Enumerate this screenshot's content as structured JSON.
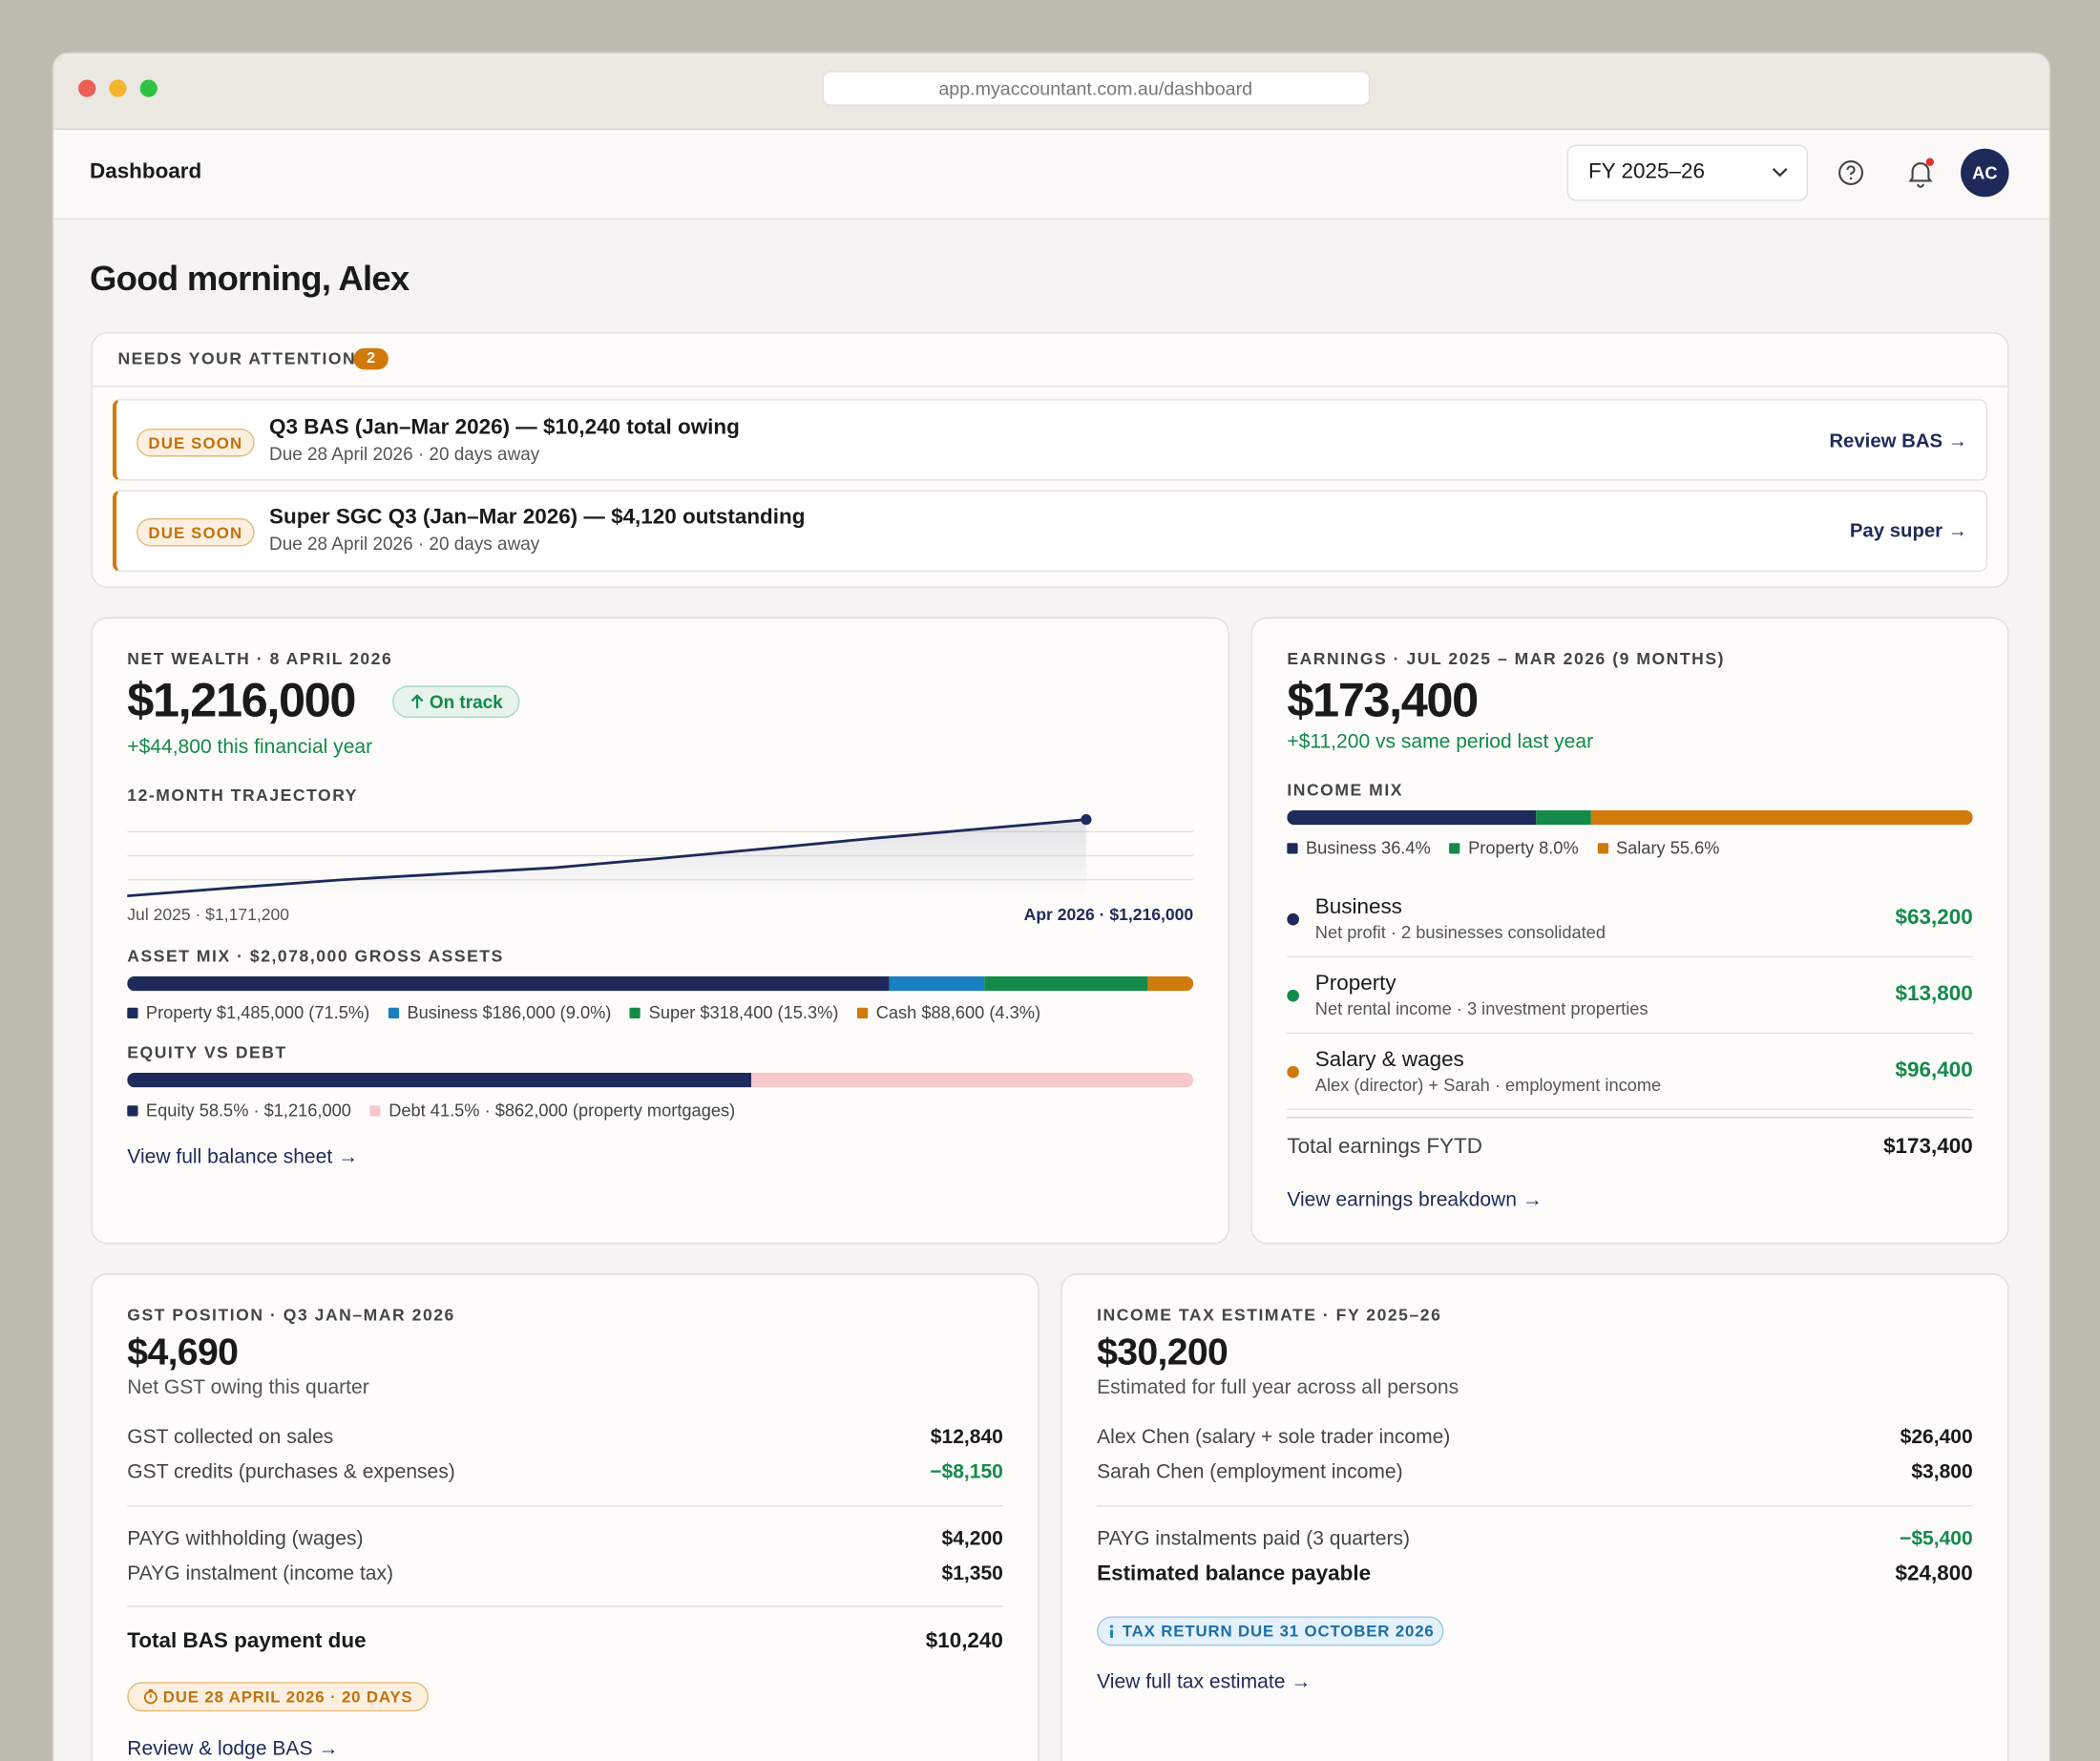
{
  "browser": {
    "url": "app.myaccountant.com.au/dashboard"
  },
  "header": {
    "title": "Dashboard",
    "fy": "FY 2025–26",
    "avatar": "AC"
  },
  "greeting": "Good morning, Alex",
  "attention": {
    "title": "NEEDS YOUR ATTENTION",
    "count": 2,
    "items": [
      {
        "badge": "DUE SOON",
        "title": "Q3 BAS (Jan–Mar 2026) — $10,240 total owing",
        "sub": "Due 28 April 2026 · 20 days away",
        "action": "Review BAS →"
      },
      {
        "badge": "DUE SOON",
        "title": "Super SGC Q3 (Jan–Mar 2026) — $4,120 outstanding",
        "sub": "Due 28 April 2026 · 20 days away",
        "action": "Pay super →"
      }
    ]
  },
  "net_wealth": {
    "label": "NET WEALTH · 8 APRIL 2026",
    "value": "$1,216,000",
    "status": "On track",
    "change": "+$44,800 this financial year",
    "trajectory": {
      "title": "12-MONTH TRAJECTORY",
      "values": [
        1171200,
        1176000,
        1180600,
        1184200,
        1187700,
        1193200,
        1199000,
        1205000,
        1210500,
        1216000
      ],
      "color": "#1e2a5a",
      "start_label": "Jul 2025 · $1,171,200",
      "end_label": "Apr 2026 · $1,216,000"
    },
    "asset_mix": {
      "title": "ASSET MIX · $2,078,000 GROSS ASSETS",
      "segments": [
        {
          "label": "Property $1,485,000 (71.5%)",
          "share": 71.5,
          "color": "#1e2a5a"
        },
        {
          "label": "Business $186,000 (9.0%)",
          "share": 9.0,
          "color": "#1a7fc0"
        },
        {
          "label": "Super $318,400 (15.3%)",
          "share": 15.3,
          "color": "#138a4a"
        },
        {
          "label": "Cash $88,600 (4.3%)",
          "share": 4.3,
          "color": "#d07a0c"
        }
      ]
    },
    "equity_debt": {
      "title": "EQUITY VS DEBT",
      "segments": [
        {
          "label": "Equity 58.5% · $1,216,000",
          "share": 58.5,
          "color": "#1e2a5a"
        },
        {
          "label": "Debt 41.5% · $862,000 (property mortgages)",
          "share": 41.5,
          "color": "#f7c9cc"
        }
      ]
    },
    "link": "View full balance sheet →"
  },
  "earnings": {
    "label": "EARNINGS · JUL 2025 – MAR 2026 (9 MONTHS)",
    "value": "$173,400",
    "change": "+$11,200 vs same period last year",
    "income_mix": {
      "title": "INCOME MIX",
      "segments": [
        {
          "label": "Business 36.4%",
          "share": 36.4,
          "color": "#1e2a5a"
        },
        {
          "label": "Property 8.0%",
          "share": 8.0,
          "color": "#138a4a"
        },
        {
          "label": "Salary 55.6%",
          "share": 55.6,
          "color": "#d07a0c"
        }
      ]
    },
    "rows": [
      {
        "name": "Business",
        "sub": "Net profit · 2 businesses consolidated",
        "amount": "$63,200",
        "color": "#1e2a5a"
      },
      {
        "name": "Property",
        "sub": "Net rental income · 3 investment properties",
        "amount": "$13,800",
        "color": "#138a4a"
      },
      {
        "name": "Salary & wages",
        "sub": "Alex (director) + Sarah · employment income",
        "amount": "$96,400",
        "color": "#d07a0c"
      }
    ],
    "total": {
      "label": "Total earnings FYTD",
      "amount": "$173,400"
    },
    "link": "View earnings breakdown →"
  },
  "gst": {
    "label": "GST POSITION · Q3 JAN–MAR 2026",
    "value": "$4,690",
    "sub": "Net GST owing this quarter",
    "rows": [
      {
        "label": "GST collected on sales",
        "amount": "$12,840"
      },
      {
        "label": "GST credits (purchases & expenses)",
        "amount": "−$8,150",
        "color": "#138a4a"
      },
      {
        "label": "PAYG withholding (wages)",
        "amount": "$4,200"
      },
      {
        "label": "PAYG instalment (income tax)",
        "amount": "$1,350"
      }
    ],
    "total": {
      "label": "Total BAS payment due",
      "amount": "$10,240"
    },
    "badge": "DUE 28 APRIL 2026 · 20 DAYS",
    "link": "Review & lodge BAS →"
  },
  "tax": {
    "label": "INCOME TAX ESTIMATE · FY 2025–26",
    "value": "$30,200",
    "sub": "Estimated for full year across all persons",
    "rows": [
      {
        "label": "Alex Chen (salary + sole trader income)",
        "amount": "$26,400"
      },
      {
        "label": "Sarah Chen (employment income)",
        "amount": "$3,800"
      },
      {
        "label": "PAYG instalments paid (3 quarters)",
        "amount": "−$5,400",
        "color": "#138a4a"
      }
    ],
    "total": {
      "label": "Estimated balance payable",
      "amount": "$24,800"
    },
    "badge": "TAX RETURN DUE 31 OCTOBER 2026",
    "link": "View full tax estimate →"
  }
}
